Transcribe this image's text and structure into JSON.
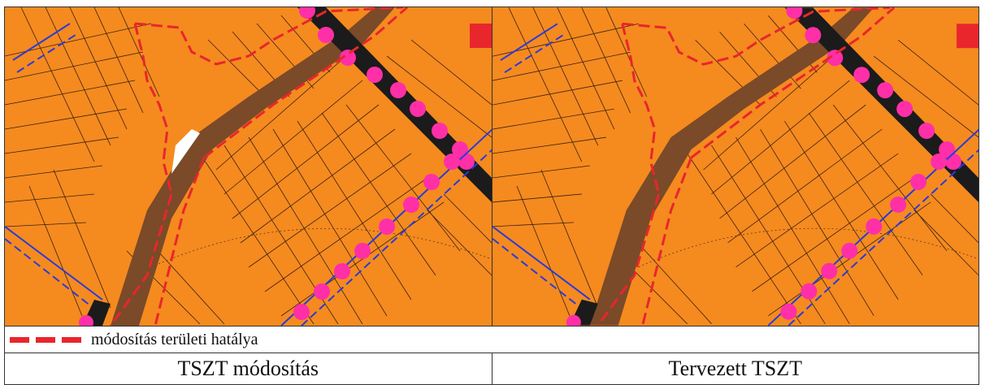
{
  "legend": {
    "label": "módosítás területi hatálya",
    "line_color": "#e8262c"
  },
  "panels": [
    {
      "caption": "TSZT módosítás"
    },
    {
      "caption": "Tervezett TSZT"
    }
  ],
  "colors": {
    "land_use_orange": "#f58a1f",
    "road_brown": "#7b4a28",
    "road_black": "#1b1b1b",
    "utility_pink": "#ff2fa8",
    "water_blue": "#2a3bd8",
    "parcel_lines": "#222222",
    "boundary_red": "#e8262c"
  }
}
